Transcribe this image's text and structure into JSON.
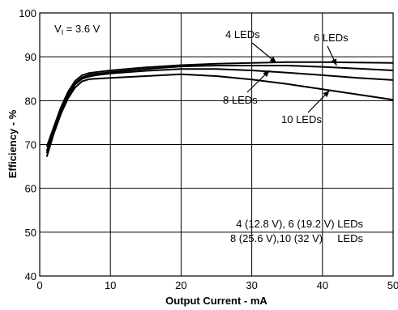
{
  "chart_data": {
    "type": "line",
    "xlabel": "Output Current - mA",
    "ylabel": "Efficiency - %",
    "xlim": [
      0,
      50
    ],
    "ylim": [
      40,
      100
    ],
    "xticks": [
      0,
      10,
      20,
      30,
      40,
      50
    ],
    "yticks": [
      40,
      50,
      60,
      70,
      80,
      90,
      100
    ],
    "grid": true,
    "condition": {
      "prefix": "V",
      "subscript": "I",
      "suffix": " = 3.6 V"
    },
    "legend_text": [
      "4 (12.8 V), 6 (19.2 V) LEDs",
      "8 (25.6 V),10 (32 V)     LEDs"
    ],
    "series": [
      {
        "name": "4 LEDs",
        "x": [
          1,
          2,
          3,
          4,
          5,
          6,
          7,
          8,
          10,
          15,
          20,
          25,
          30,
          35,
          40,
          45,
          50
        ],
        "y": [
          69.5,
          74,
          78.5,
          82,
          84.5,
          85.8,
          86.3,
          86.5,
          86.9,
          87.6,
          88.1,
          88.4,
          88.6,
          88.8,
          88.8,
          88.7,
          88.6
        ]
      },
      {
        "name": "6 LEDs",
        "x": [
          1,
          2,
          3,
          4,
          5,
          6,
          7,
          8,
          10,
          15,
          20,
          25,
          30,
          35,
          40,
          45,
          50
        ],
        "y": [
          68.5,
          73.5,
          78,
          81.5,
          84,
          85.3,
          85.9,
          86.1,
          86.5,
          87.2,
          87.8,
          88.0,
          88.0,
          88.0,
          87.7,
          87.3,
          86.9
        ]
      },
      {
        "name": "8 LEDs",
        "x": [
          1,
          2,
          3,
          4,
          5,
          6,
          7,
          8,
          10,
          15,
          20,
          25,
          30,
          35,
          40,
          45,
          50
        ],
        "y": [
          68,
          73,
          77.5,
          81,
          83.7,
          85,
          85.5,
          85.8,
          86.2,
          86.8,
          87.2,
          87.2,
          86.9,
          86.4,
          85.8,
          85.2,
          84.7
        ]
      },
      {
        "name": "10 LEDs",
        "x": [
          1,
          2,
          3,
          4,
          5,
          6,
          7,
          8,
          10,
          15,
          20,
          25,
          30,
          35,
          40,
          45,
          50
        ],
        "y": [
          67.2,
          72.5,
          77,
          80.5,
          83,
          84.4,
          84.9,
          85.0,
          85.2,
          85.6,
          86.0,
          85.6,
          84.8,
          83.8,
          82.6,
          81.4,
          80.2
        ]
      }
    ],
    "annotations": [
      {
        "label": "4 LEDs",
        "target": [
          33.5,
          88.6
        ]
      },
      {
        "label": "6 LEDs",
        "target": [
          42,
          88.0
        ]
      },
      {
        "label": "8 LEDs",
        "target": [
          32.5,
          86.9
        ]
      },
      {
        "label": "10 LEDs",
        "target": [
          41,
          82.3
        ]
      }
    ]
  }
}
